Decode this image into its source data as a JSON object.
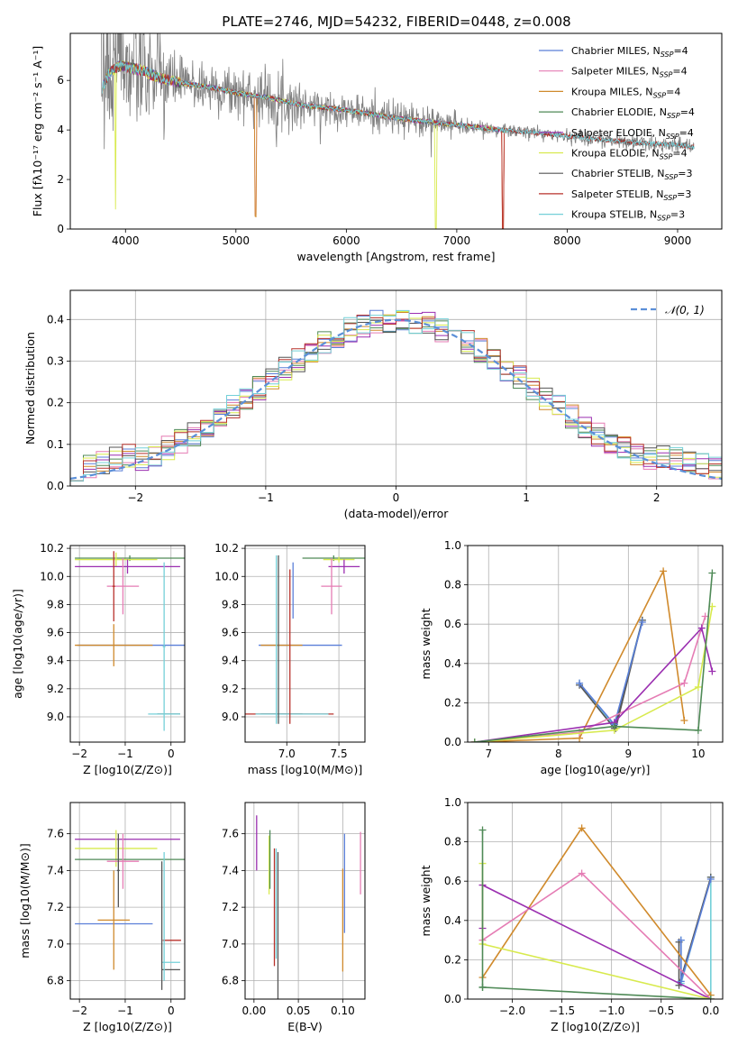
{
  "figure": {
    "title": "PLATE=2746, MJD=54232, FIBERID=0448, z=0.008"
  },
  "colors": {
    "Chabrier MILES": "#5b7fd8",
    "Salpeter MILES": "#e57cb4",
    "Kroupa MILES": "#d08a2c",
    "Chabrier ELODIE": "#4f8a57",
    "Salpeter ELODIE": "#9b2fb0",
    "Kroupa ELODIE": "#d8ea4e",
    "Chabrier STELIB": "#555555",
    "Salpeter STELIB": "#b8322c",
    "Kroupa STELIB": "#74d0d8",
    "data": "#808080",
    "normal": "#5b8fd8"
  },
  "chart_data": [
    {
      "id": "spectrum",
      "type": "line",
      "xlabel": "wavelength [Angstrom, rest frame]",
      "ylabel": "Flux [fλ10⁻¹⁷ erg cm⁻² s⁻¹ A⁻¹]",
      "xlim": [
        3500,
        9400
      ],
      "ylim": [
        0,
        7.9
      ],
      "xticks": [
        4000,
        5000,
        6000,
        7000,
        8000,
        9000
      ],
      "yticks": [
        0,
        2,
        4,
        6
      ],
      "legend_position": "top-right",
      "legend": [
        {
          "label": "Chabrier MILES, N",
          "sub": "SSP",
          "tail": "=4",
          "color": "#5b7fd8"
        },
        {
          "label": "Salpeter MILES, N",
          "sub": "SSP",
          "tail": "=4",
          "color": "#e57cb4"
        },
        {
          "label": "Kroupa MILES, N",
          "sub": "SSP",
          "tail": "=4",
          "color": "#d08a2c"
        },
        {
          "label": "Chabrier ELODIE, N",
          "sub": "SSP",
          "tail": "=4",
          "color": "#4f8a57"
        },
        {
          "label": "Salpeter ELODIE, N",
          "sub": "SSP",
          "tail": "=4",
          "color": "#9b2fb0"
        },
        {
          "label": "Kroupa ELODIE, N",
          "sub": "SSP",
          "tail": "=4",
          "color": "#d8ea4e"
        },
        {
          "label": "Chabrier STELIB, N",
          "sub": "SSP",
          "tail": "=3",
          "color": "#555555"
        },
        {
          "label": "Salpeter STELIB, N",
          "sub": "SSP",
          "tail": "=3",
          "color": "#b8322c"
        },
        {
          "label": "Kroupa STELIB, N",
          "sub": "SSP",
          "tail": "=3",
          "color": "#74d0d8"
        }
      ],
      "continuum": {
        "wavelength": [
          3780,
          3850,
          3950,
          4050,
          4150,
          4300,
          4500,
          4800,
          5000,
          5300,
          5600,
          6000,
          6500,
          7000,
          7400,
          7800,
          8200,
          8600,
          9000,
          9150
        ],
        "flux": [
          5.6,
          6.3,
          6.6,
          6.5,
          6.4,
          6.1,
          5.9,
          5.7,
          5.5,
          5.3,
          5.0,
          4.8,
          4.45,
          4.2,
          4.0,
          3.85,
          3.65,
          3.5,
          3.4,
          3.3
        ]
      }
    },
    {
      "id": "residuals",
      "type": "histogram",
      "xlabel": "(data-model)/error",
      "ylabel": "Normed distribution",
      "xlim": [
        -2.5,
        2.5
      ],
      "ylim": [
        0,
        0.47
      ],
      "xticks": [
        -2,
        -1,
        0,
        1,
        2
      ],
      "yticks": [
        0.0,
        0.1,
        0.2,
        0.3,
        0.4
      ],
      "legend_position": "top-right",
      "legend_label": "N(0,1)",
      "bin_width": 0.1
    },
    {
      "id": "age-vs-Z",
      "type": "errorbar",
      "xlabel": "Z [log10(Z/Z⊙)]",
      "ylabel": "age [log10(age/yr)]",
      "xlim": [
        -2.2,
        0.3
      ],
      "ylim": [
        8.82,
        10.22
      ],
      "xticks": [
        -2,
        -1,
        0
      ],
      "yticks": [
        9.0,
        9.2,
        9.4,
        9.6,
        9.8,
        10.0,
        10.2
      ],
      "series": [
        {
          "color": "#5b7fd8",
          "x": -0.45,
          "xerr": 1.6,
          "y": 9.51,
          "yerr": 0
        },
        {
          "color": "#d08a2c",
          "x": -1.25,
          "xerr": 0.85,
          "y": 9.51,
          "yerr": 0.15
        },
        {
          "color": "#4f8a57",
          "x": -0.9,
          "xerr": 1.2,
          "y": 10.13,
          "yerr": 0.02
        },
        {
          "color": "#d8ea4e",
          "x": -1.2,
          "xerr": 0.9,
          "y": 10.12,
          "yerr": 0.05
        },
        {
          "color": "#9b2fb0",
          "x": -0.95,
          "xerr": 1.15,
          "y": 10.07,
          "yerr": 0.05
        },
        {
          "color": "#e57cb4",
          "x": -1.05,
          "xerr": 0.35,
          "y": 9.93,
          "yerr": 0.2
        },
        {
          "color": "#555555",
          "x": -0.05,
          "xerr": 0.25,
          "y": 9.02,
          "yerr": 0
        },
        {
          "color": "#74d0d8",
          "x": -0.15,
          "xerr": 0.35,
          "y": 9.02,
          "yerr": 0
        },
        {
          "color": "#b8322c",
          "x": -1.25,
          "xerr": 0.03,
          "y": 9.93,
          "yerr": 0.25
        },
        {
          "color": "#74d0d8",
          "x": -0.15,
          "xerr": 0.03,
          "y": 9.5,
          "yerr": 0.6
        }
      ]
    },
    {
      "id": "age-vs-mass",
      "type": "errorbar",
      "xlabel": "mass [log10(M/M⊙)]",
      "ylabel": "",
      "xlim": [
        6.6,
        7.75
      ],
      "ylim": [
        8.82,
        10.22
      ],
      "xticks": [
        7.0,
        7.5
      ],
      "yticks": [
        9.0,
        9.2,
        9.4,
        9.6,
        9.8,
        10.0,
        10.2
      ],
      "series": [
        {
          "color": "#5b7fd8",
          "x": 7.13,
          "xerr": 0.4,
          "y": 9.51,
          "yerr": 0
        },
        {
          "color": "#d08a2c",
          "x": 6.95,
          "xerr": 0.2,
          "y": 9.51,
          "yerr": 0.0
        },
        {
          "color": "#4f8a57",
          "x": 7.45,
          "xerr": 0.3,
          "y": 10.13,
          "yerr": 0.02
        },
        {
          "color": "#d8ea4e",
          "x": 7.5,
          "xerr": 0.15,
          "y": 10.12,
          "yerr": 0.02
        },
        {
          "color": "#9b2fb0",
          "x": 7.55,
          "xerr": 0.15,
          "y": 10.07,
          "yerr": 0.05
        },
        {
          "color": "#e57cb4",
          "x": 7.43,
          "xerr": 0.1,
          "y": 9.93,
          "yerr": 0.2
        },
        {
          "color": "#555555",
          "x": 6.95,
          "xerr": 0.2,
          "y": 9.02,
          "yerr": 0
        },
        {
          "color": "#b8322c",
          "x": 7.0,
          "xerr": 0.45,
          "y": 9.02,
          "yerr": 0
        },
        {
          "color": "#74d0d8",
          "x": 7.05,
          "xerr": 0.35,
          "y": 9.02,
          "yerr": 0
        },
        {
          "color": "#74d0d8",
          "x": 6.9,
          "xerr": 0,
          "y": 9.55,
          "yerr": 0.6
        },
        {
          "color": "#555555",
          "x": 6.92,
          "xerr": 0,
          "y": 9.55,
          "yerr": 0.6
        },
        {
          "color": "#b8322c",
          "x": 7.03,
          "xerr": 0,
          "y": 9.5,
          "yerr": 0.55
        },
        {
          "color": "#5b7fd8",
          "x": 7.06,
          "xerr": 0,
          "y": 9.9,
          "yerr": 0.2
        }
      ]
    },
    {
      "id": "weight-vs-age",
      "type": "line",
      "xlabel": "age [log10(age/yr)]",
      "ylabel": "mass weight",
      "xlim": [
        6.7,
        10.35
      ],
      "ylim": [
        0,
        1.0
      ],
      "xticks": [
        7,
        8,
        9,
        10
      ],
      "yticks": [
        0.0,
        0.2,
        0.4,
        0.6,
        0.8,
        1.0
      ],
      "series": [
        {
          "color": "#74d0d8",
          "x": [
            8.3,
            8.8,
            9.2,
            8.8
          ],
          "y": [
            0.3,
            0.08,
            0.62,
            0.08
          ]
        },
        {
          "color": "#555555",
          "x": [
            8.3,
            8.8,
            9.2,
            8.82
          ],
          "y": [
            0.29,
            0.07,
            0.62,
            0.07
          ]
        },
        {
          "color": "#5b7fd8",
          "x": [
            8.3,
            8.8,
            9.2,
            8.8
          ],
          "y": [
            0.3,
            0.09,
            0.61,
            0.09
          ]
        },
        {
          "color": "#d08a2c",
          "x": [
            6.8,
            8.3,
            9.5,
            9.8
          ],
          "y": [
            0.0,
            0.02,
            0.87,
            0.11
          ]
        },
        {
          "color": "#e57cb4",
          "x": [
            6.8,
            8.3,
            9.8,
            10.1
          ],
          "y": [
            0.0,
            0.05,
            0.3,
            0.64
          ]
        },
        {
          "color": "#9b2fb0",
          "x": [
            6.8,
            8.8,
            10.05,
            10.2
          ],
          "y": [
            0.0,
            0.1,
            0.58,
            0.36
          ]
        },
        {
          "color": "#d8ea4e",
          "x": [
            6.8,
            8.8,
            10.0,
            10.2
          ],
          "y": [
            0.0,
            0.06,
            0.28,
            0.69
          ]
        },
        {
          "color": "#4f8a57",
          "x": [
            6.8,
            8.8,
            10.0,
            10.2
          ],
          "y": [
            0.0,
            0.08,
            0.06,
            0.86
          ]
        }
      ]
    },
    {
      "id": "mass-vs-Z",
      "type": "errorbar",
      "xlabel": "Z [log10(Z/Z⊙)]",
      "ylabel": "mass [log10(M/M⊙)]",
      "xlim": [
        -2.2,
        0.3
      ],
      "ylim": [
        6.7,
        7.77
      ],
      "xticks": [
        -2,
        -1,
        0
      ],
      "yticks": [
        6.8,
        7.0,
        7.2,
        7.4,
        7.6
      ],
      "series": [
        {
          "color": "#9b2fb0",
          "x": -0.95,
          "xerr": 1.15,
          "y": 7.57,
          "yerr": 0.0
        },
        {
          "color": "#d8ea4e",
          "x": -1.2,
          "xerr": 0.9,
          "y": 7.52,
          "yerr": 0.1
        },
        {
          "color": "#4f8a57",
          "x": -0.85,
          "xerr": 1.25,
          "y": 7.46,
          "yerr": 0.0
        },
        {
          "color": "#e57cb4",
          "x": -1.05,
          "xerr": 0.35,
          "y": 7.45,
          "yerr": 0.15
        },
        {
          "color": "#5b7fd8",
          "x": -1.25,
          "xerr": 0.85,
          "y": 7.11,
          "yerr": 0.0
        },
        {
          "color": "#d08a2c",
          "x": -1.25,
          "xerr": 0.35,
          "y": 7.13,
          "yerr": 0.27
        },
        {
          "color": "#555555",
          "x": -1.15,
          "xerr": 0.03,
          "y": 7.4,
          "yerr": 0.2
        },
        {
          "color": "#b8322c",
          "x": 0.02,
          "xerr": 0.2,
          "y": 7.02,
          "yerr": 0
        },
        {
          "color": "#74d0d8",
          "x": 0.0,
          "xerr": 0.2,
          "y": 6.9,
          "yerr": 0
        },
        {
          "color": "#555555",
          "x": 0.0,
          "xerr": 0.2,
          "y": 6.86,
          "yerr": 0
        },
        {
          "color": "#74d0d8",
          "x": -0.15,
          "xerr": 0.0,
          "y": 7.15,
          "yerr": 0.35
        },
        {
          "color": "#555555",
          "x": -0.2,
          "xerr": 0.0,
          "y": 7.1,
          "yerr": 0.35
        }
      ]
    },
    {
      "id": "mass-vs-EBV",
      "type": "errorbar",
      "xlabel": "E(B-V)",
      "ylabel": "",
      "xlim": [
        -0.01,
        0.125
      ],
      "ylim": [
        6.7,
        7.77
      ],
      "xticks": [
        0.0,
        0.05,
        0.1
      ],
      "yticks": [
        6.8,
        7.0,
        7.2,
        7.4,
        7.6
      ],
      "series": [
        {
          "color": "#9b2fb0",
          "x": 0.003,
          "y": 7.55,
          "yerr": 0.15
        },
        {
          "color": "#d8ea4e",
          "x": 0.017,
          "y": 7.43,
          "yerr": 0.16
        },
        {
          "color": "#4f8a57",
          "x": 0.018,
          "y": 7.46,
          "yerr": 0.16
        },
        {
          "color": "#b8322c",
          "x": 0.023,
          "y": 7.2,
          "yerr": 0.32
        },
        {
          "color": "#555555",
          "x": 0.027,
          "y": 7.1,
          "yerr": 0.4
        },
        {
          "color": "#74d0d8",
          "x": 0.025,
          "y": 7.22,
          "yerr": 0.3
        },
        {
          "color": "#d08a2c",
          "x": 0.1,
          "y": 7.13,
          "yerr": 0.28
        },
        {
          "color": "#5b7fd8",
          "x": 0.102,
          "y": 7.33,
          "yerr": 0.27
        },
        {
          "color": "#e57cb4",
          "x": 0.12,
          "y": 7.44,
          "yerr": 0.17
        }
      ]
    },
    {
      "id": "weight-vs-Z",
      "type": "line",
      "xlabel": "Z [log10(Z/Z⊙)]",
      "ylabel": "mass weight",
      "xlim": [
        -2.45,
        0.12
      ],
      "ylim": [
        0,
        1.0
      ],
      "xticks": [
        -2.0,
        -1.5,
        -1.0,
        -0.5,
        0.0
      ],
      "yticks": [
        0.0,
        0.2,
        0.4,
        0.6,
        0.8,
        1.0
      ],
      "series": [
        {
          "color": "#74d0d8",
          "x": [
            -0.3,
            -0.3,
            0.0,
            0.0
          ],
          "y": [
            0.3,
            0.08,
            0.62,
            0.0
          ]
        },
        {
          "color": "#555555",
          "x": [
            -0.32,
            -0.32,
            0.0
          ],
          "y": [
            0.29,
            0.07,
            0.62
          ]
        },
        {
          "color": "#5b7fd8",
          "x": [
            -0.3,
            -0.3,
            0.0
          ],
          "y": [
            0.3,
            0.09,
            0.61
          ]
        },
        {
          "color": "#d08a2c",
          "x": [
            -2.3,
            -1.3,
            0.0
          ],
          "y": [
            0.11,
            0.87,
            0.02
          ]
        },
        {
          "color": "#e57cb4",
          "x": [
            -2.3,
            -1.3,
            0.0
          ],
          "y": [
            0.3,
            0.64,
            0.0
          ]
        },
        {
          "color": "#9b2fb0",
          "x": [
            -2.3,
            -2.3,
            0.0
          ],
          "y": [
            0.36,
            0.58,
            0.0
          ]
        },
        {
          "color": "#d8ea4e",
          "x": [
            -2.3,
            -2.3,
            0.0
          ],
          "y": [
            0.69,
            0.28,
            0.0
          ]
        },
        {
          "color": "#4f8a57",
          "x": [
            -2.3,
            -2.3,
            -2.3,
            0.0
          ],
          "y": [
            0.86,
            0.06,
            0.06,
            0.0
          ]
        }
      ]
    }
  ]
}
